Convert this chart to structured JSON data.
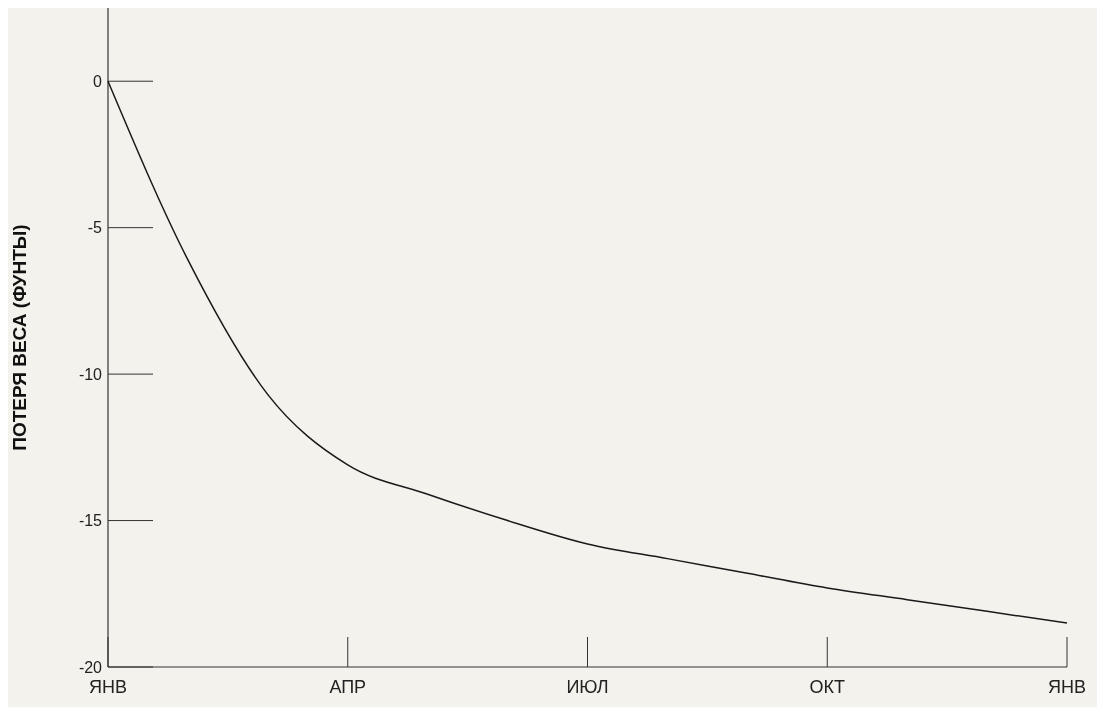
{
  "chart_data": {
    "type": "line",
    "ylabel": "ПОТЕРЯ ВЕСА (ФУНТЫ)",
    "categories": [
      "ЯНВ",
      null,
      null,
      "АПР",
      null,
      null,
      "ИЮЛ",
      null,
      null,
      "ОКТ",
      null,
      null,
      "ЯНВ"
    ],
    "series": [
      {
        "color": "#1a1a1a",
        "values": [
          0,
          -6.1,
          -10.7,
          -13.1,
          -14.1,
          -15.0,
          -15.8,
          -16.3,
          -16.8,
          -17.3,
          -17.7,
          -18.1,
          -18.5
        ]
      }
    ],
    "ylim": [
      -20,
      2.5
    ],
    "yticks": [
      0,
      -5,
      -10,
      -15,
      -20
    ],
    "grid": false,
    "marker": "none",
    "line_style": "solid"
  }
}
